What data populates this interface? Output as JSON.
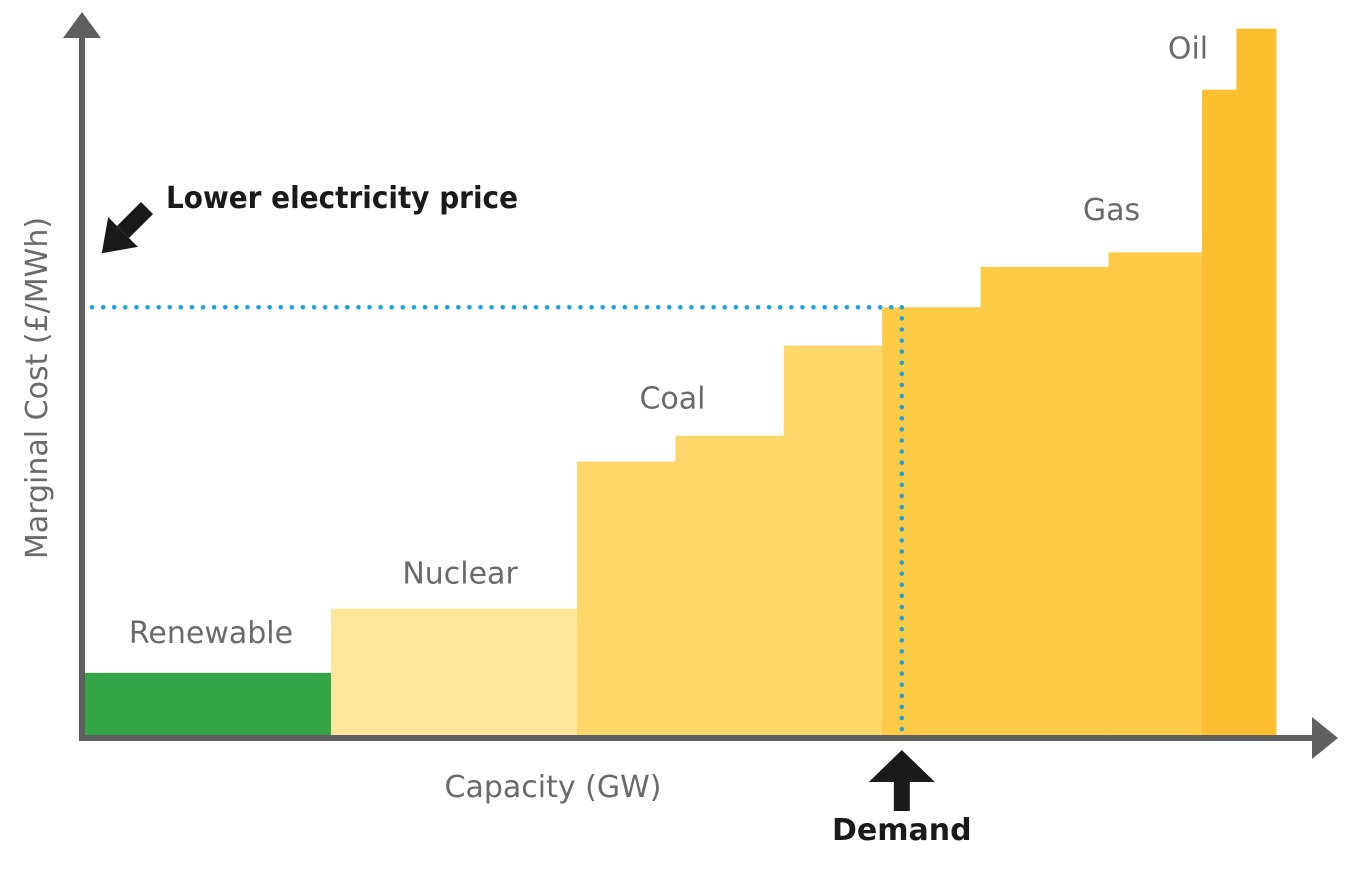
{
  "chart_data": {
    "type": "bar",
    "title": "",
    "xlabel": "Capacity (GW)",
    "ylabel": "Marginal Cost (£/MWh)",
    "grid": false,
    "legend": "none",
    "series": [
      {
        "name": "Renewable",
        "color": "#34a547",
        "blocks": [
          {
            "capacity": 2.5,
            "cost": 6
          }
        ]
      },
      {
        "name": "Nuclear",
        "color": "#fde59a",
        "blocks": [
          {
            "capacity": 2.5,
            "cost": 12.2
          }
        ]
      },
      {
        "name": "Coal",
        "color": "#fdd76a",
        "blocks": [
          {
            "capacity": 1.0,
            "cost": 26.4
          },
          {
            "capacity": 1.1,
            "cost": 28.9
          },
          {
            "capacity": 1.0,
            "cost": 37.6
          }
        ]
      },
      {
        "name": "Gas",
        "color": "#fecb47",
        "blocks": [
          {
            "capacity": 1.0,
            "cost": 41.3
          },
          {
            "capacity": 1.3,
            "cost": 45.2
          },
          {
            "capacity": 0.95,
            "cost": 46.6
          }
        ]
      },
      {
        "name": "Oil",
        "color": "#fdbf30",
        "blocks": [
          {
            "capacity": 0.35,
            "cost": 62.3
          },
          {
            "capacity": 0.4,
            "cost": 68.2
          }
        ]
      }
    ],
    "demand": {
      "capacity": 8.3,
      "price": 41.3,
      "label": "Demand"
    },
    "annotation": "Lower electricity price",
    "xlim": [
      0,
      12.6
    ],
    "ylim": [
      0,
      70
    ]
  }
}
